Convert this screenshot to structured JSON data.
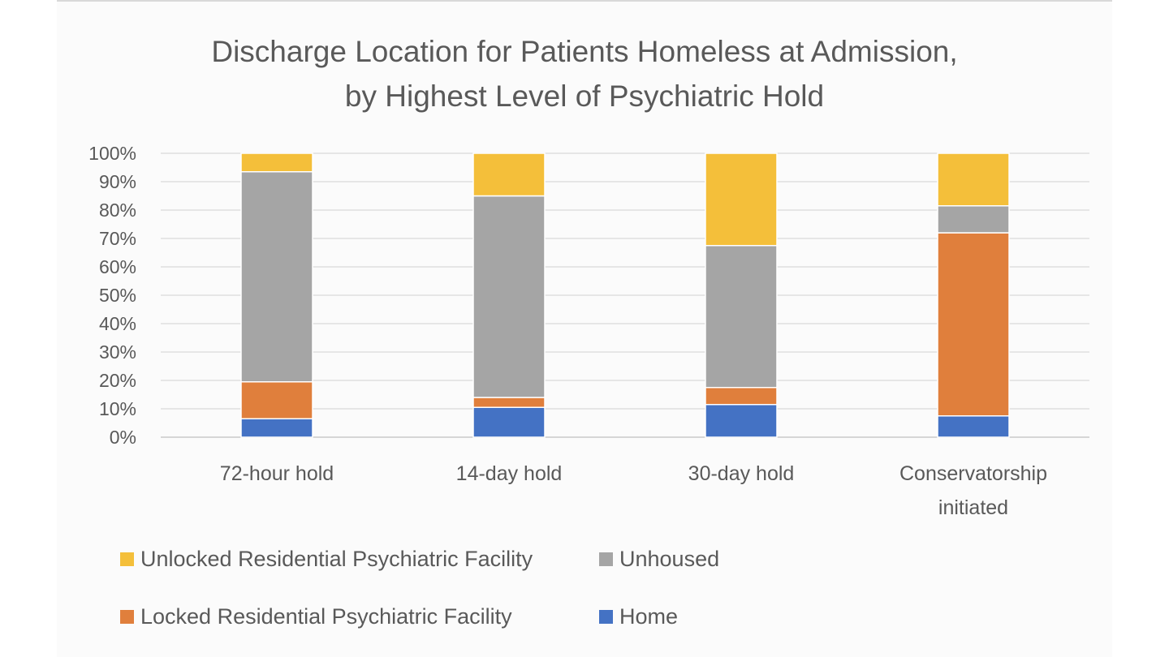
{
  "chart_data": {
    "type": "bar",
    "stacked": true,
    "title": "Discharge Location for Patients Homeless at Admission, by Highest Level of Psychiatric Hold",
    "title_lines": [
      "Discharge Location for Patients Homeless at Admission,",
      "by Highest Level of Psychiatric Hold"
    ],
    "categories": [
      [
        "72-hour hold"
      ],
      [
        "14-day hold"
      ],
      [
        "30-day hold"
      ],
      [
        "Conservatorship",
        "initiated"
      ]
    ],
    "series": [
      {
        "name": "Home",
        "color": "#4472C4",
        "values": [
          6.5,
          10.5,
          11.5,
          7.5
        ]
      },
      {
        "name": "Locked Residential Psychiatric Facility",
        "color": "#E07F3C",
        "values": [
          13,
          3.5,
          6,
          64.5
        ]
      },
      {
        "name": "Unhoused",
        "color": "#A5A5A5",
        "values": [
          74,
          71,
          50,
          9.5
        ]
      },
      {
        "name": "Unlocked Residential Psychiatric Facility",
        "color": "#F4BF3A",
        "values": [
          6.5,
          15,
          32.5,
          18.5
        ]
      }
    ],
    "ylim": [
      0,
      100
    ],
    "yticks": [
      "0%",
      "10%",
      "20%",
      "30%",
      "40%",
      "50%",
      "60%",
      "70%",
      "80%",
      "90%",
      "100%"
    ],
    "xlabel": "",
    "ylabel": "",
    "grid": true,
    "legend_position": "bottom",
    "legend": [
      {
        "name": "Unlocked Residential Psychiatric Facility",
        "color": "#F4BF3A"
      },
      {
        "name": "Unhoused",
        "color": "#A5A5A5"
      },
      {
        "name": "Locked Residential Psychiatric Facility",
        "color": "#E07F3C"
      },
      {
        "name": "Home",
        "color": "#4472C4"
      }
    ]
  }
}
